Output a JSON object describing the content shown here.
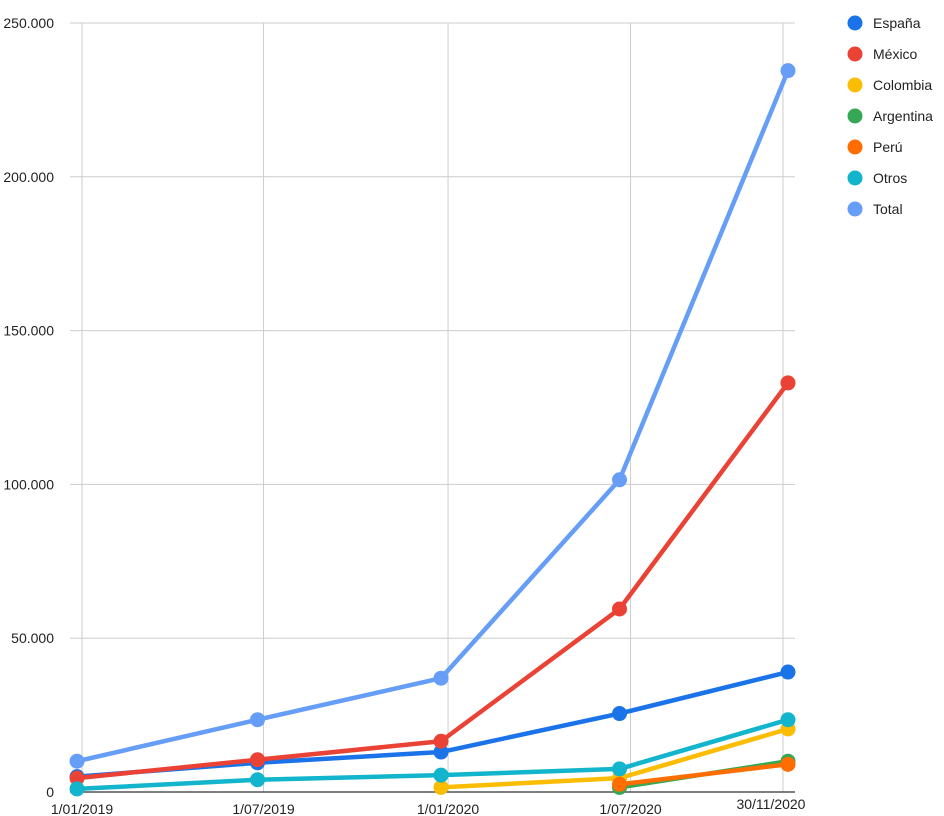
{
  "chart_data": {
    "type": "line",
    "title": "",
    "xlabel": "",
    "ylabel": "",
    "x_tick_labels": [
      "1/01/2019",
      "1/07/2019",
      "1/01/2020",
      "1/07/2020",
      "30/11/2020"
    ],
    "y_tick_labels": [
      "0",
      "50.000",
      "100.000",
      "150.000",
      "200.000",
      "250.000"
    ],
    "y_ticks": [
      0,
      50000,
      100000,
      150000,
      200000,
      250000
    ],
    "ylim": [
      0,
      250000
    ],
    "xlim": [
      "2018-12-20",
      "2020-12-12"
    ],
    "x_tick_dates": [
      "2019-01-01",
      "2019-07-01",
      "2020-01-01",
      "2020-07-01",
      "2020-11-30"
    ],
    "grid": true,
    "legend_position": "right",
    "series": [
      {
        "name": "España",
        "color": "#1a73e8",
        "points": [
          {
            "x": "2018-12-27",
            "y": 5000
          },
          {
            "x": "2019-06-25",
            "y": 9500
          },
          {
            "x": "2019-12-25",
            "y": 13000
          },
          {
            "x": "2020-06-20",
            "y": 25500
          },
          {
            "x": "2020-12-05",
            "y": 39000
          }
        ]
      },
      {
        "name": "México",
        "color": "#ea4335",
        "points": [
          {
            "x": "2018-12-27",
            "y": 4500
          },
          {
            "x": "2019-06-25",
            "y": 10500
          },
          {
            "x": "2019-12-25",
            "y": 16500
          },
          {
            "x": "2020-06-20",
            "y": 59500
          },
          {
            "x": "2020-12-05",
            "y": 133000
          }
        ]
      },
      {
        "name": "Colombia",
        "color": "#fbbc04",
        "points": [
          {
            "x": "2019-12-25",
            "y": 1500
          },
          {
            "x": "2020-06-20",
            "y": 4500
          },
          {
            "x": "2020-12-05",
            "y": 20500
          }
        ]
      },
      {
        "name": "Argentina",
        "color": "#34a853",
        "points": [
          {
            "x": "2020-06-20",
            "y": 1500
          },
          {
            "x": "2020-12-05",
            "y": 10000
          }
        ]
      },
      {
        "name": "Perú",
        "color": "#ff6d01",
        "points": [
          {
            "x": "2020-06-20",
            "y": 2500
          },
          {
            "x": "2020-12-05",
            "y": 9000
          }
        ]
      },
      {
        "name": "Otros",
        "color": "#12b5cb",
        "points": [
          {
            "x": "2018-12-27",
            "y": 1000
          },
          {
            "x": "2019-06-25",
            "y": 4000
          },
          {
            "x": "2019-12-25",
            "y": 5500
          },
          {
            "x": "2020-06-20",
            "y": 7500
          },
          {
            "x": "2020-12-05",
            "y": 23500
          }
        ]
      },
      {
        "name": "Total",
        "color": "#669df6",
        "points": [
          {
            "x": "2018-12-27",
            "y": 10000
          },
          {
            "x": "2019-06-25",
            "y": 23500
          },
          {
            "x": "2019-12-25",
            "y": 37000
          },
          {
            "x": "2020-06-20",
            "y": 101500
          },
          {
            "x": "2020-12-05",
            "y": 234500
          }
        ]
      }
    ]
  }
}
